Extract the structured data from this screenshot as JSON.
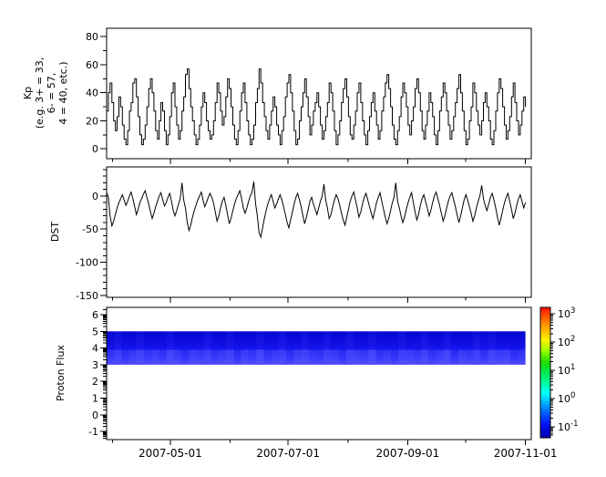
{
  "figure": {
    "background": "#ffffff",
    "axis_color": "#000000"
  },
  "x_axis": {
    "span_days": 220,
    "data_end_day": 217,
    "months": [
      {
        "day": 3,
        "label": ""
      },
      {
        "day": 33,
        "label": "2007-05-01"
      },
      {
        "day": 64,
        "label": ""
      },
      {
        "day": 94,
        "label": "2007-07-01"
      },
      {
        "day": 125,
        "label": ""
      },
      {
        "day": 156,
        "label": "2007-09-01"
      },
      {
        "day": 186,
        "label": ""
      },
      {
        "day": 217,
        "label": "2007-11-01"
      }
    ]
  },
  "chart_data": [
    {
      "type": "line",
      "name": "kp",
      "ylabel_lines": [
        "Kp",
        "(e.g. 3+ = 33,",
        "6- = 57,",
        "4 = 40, etc.)"
      ],
      "yticks": [
        80,
        60,
        40,
        20,
        0
      ],
      "minor_step": 10,
      "ylim": [
        -7,
        86
      ],
      "line_color": "#000000",
      "values": [
        27,
        40,
        47,
        33,
        20,
        13,
        23,
        37,
        30,
        17,
        7,
        3,
        13,
        27,
        33,
        47,
        50,
        37,
        23,
        10,
        3,
        7,
        17,
        30,
        43,
        50,
        40,
        27,
        13,
        7,
        20,
        33,
        27,
        13,
        3,
        10,
        23,
        40,
        47,
        30,
        17,
        7,
        13,
        27,
        37,
        53,
        57,
        43,
        30,
        20,
        10,
        3,
        7,
        17,
        30,
        40,
        33,
        20,
        13,
        7,
        10,
        20,
        33,
        47,
        40,
        27,
        17,
        23,
        37,
        50,
        43,
        30,
        17,
        7,
        3,
        13,
        27,
        40,
        47,
        33,
        20,
        10,
        3,
        7,
        17,
        33,
        43,
        57,
        47,
        33,
        23,
        13,
        7,
        17,
        27,
        37,
        30,
        17,
        10,
        3,
        13,
        23,
        37,
        47,
        53,
        40,
        27,
        13,
        3,
        7,
        20,
        30,
        40,
        50,
        37,
        23,
        10,
        17,
        27,
        33,
        40,
        30,
        17,
        7,
        13,
        23,
        33,
        47,
        40,
        27,
        13,
        3,
        10,
        20,
        33,
        43,
        50,
        37,
        23,
        10,
        7,
        17,
        27,
        40,
        47,
        33,
        20,
        10,
        3,
        13,
        23,
        33,
        40,
        27,
        17,
        7,
        13,
        27,
        37,
        47,
        53,
        43,
        30,
        17,
        7,
        3,
        13,
        23,
        37,
        47,
        40,
        30,
        17,
        10,
        20,
        30,
        43,
        50,
        40,
        27,
        13,
        7,
        17,
        27,
        40,
        33,
        23,
        10,
        3,
        13,
        27,
        37,
        47,
        40,
        27,
        17,
        7,
        13,
        23,
        33,
        43,
        53,
        40,
        27,
        13,
        3,
        7,
        20,
        30,
        47,
        40,
        27,
        17,
        10,
        20,
        33,
        40,
        30,
        20,
        7,
        3,
        13,
        27,
        40,
        50,
        43,
        30,
        17,
        7,
        13,
        23,
        37,
        47,
        33,
        20,
        10,
        17,
        27,
        37,
        30
      ]
    },
    {
      "type": "line",
      "name": "dst",
      "ylabel": "DST",
      "yticks": [
        0,
        -50,
        -100,
        -150
      ],
      "minor_step": 10,
      "ylim": [
        -153,
        44
      ],
      "line_color": "#000000",
      "values": [
        5,
        -2,
        -30,
        -45,
        -38,
        -28,
        -18,
        -10,
        -4,
        2,
        -6,
        -14,
        -8,
        0,
        6,
        -4,
        -16,
        -28,
        -20,
        -10,
        -4,
        3,
        8,
        -2,
        -12,
        -24,
        -34,
        -26,
        -16,
        -8,
        0,
        5,
        -5,
        -15,
        -10,
        -2,
        4,
        -8,
        -22,
        -30,
        -22,
        -12,
        -4,
        20,
        -6,
        -18,
        -40,
        -52,
        -44,
        -32,
        -22,
        -14,
        -6,
        0,
        6,
        -6,
        -16,
        -10,
        -2,
        4,
        -2,
        -10,
        -24,
        -38,
        -30,
        -18,
        -8,
        -2,
        -14,
        -28,
        -42,
        -34,
        -22,
        -12,
        -4,
        2,
        8,
        -4,
        -18,
        -26,
        -18,
        -8,
        0,
        6,
        22,
        -12,
        -30,
        -55,
        -62,
        -48,
        -34,
        -22,
        -12,
        -4,
        2,
        -8,
        -18,
        -12,
        -4,
        2,
        -6,
        -16,
        -28,
        -40,
        -48,
        -36,
        -24,
        -12,
        -2,
        4,
        -6,
        -16,
        -30,
        -42,
        -32,
        -20,
        -8,
        -2,
        -12,
        -20,
        -28,
        -18,
        -8,
        0,
        18,
        -6,
        -18,
        -34,
        -28,
        -16,
        -6,
        2,
        -4,
        -14,
        -26,
        -36,
        -44,
        -32,
        -20,
        -8,
        0,
        6,
        -6,
        -18,
        -32,
        -24,
        -12,
        -2,
        4,
        -6,
        -16,
        -26,
        -34,
        -22,
        -10,
        -2,
        5,
        -8,
        -20,
        -32,
        -42,
        -34,
        -22,
        -10,
        -2,
        20,
        -8,
        -18,
        -30,
        -40,
        -32,
        -20,
        -10,
        -2,
        5,
        -10,
        -24,
        -36,
        -28,
        -14,
        -4,
        2,
        -8,
        -18,
        -30,
        -22,
        -10,
        0,
        6,
        -4,
        -14,
        -26,
        -38,
        -30,
        -18,
        -8,
        0,
        5,
        -6,
        -16,
        -28,
        -40,
        -30,
        -18,
        -6,
        2,
        -6,
        -16,
        -26,
        -38,
        -30,
        -18,
        -8,
        0,
        16,
        -4,
        -14,
        -22,
        -12,
        -2,
        4,
        -6,
        -18,
        -32,
        -44,
        -34,
        -22,
        -10,
        -2,
        4,
        -8,
        -20,
        -34,
        -26,
        -14,
        -4,
        2,
        -8,
        -18,
        -10
      ]
    },
    {
      "type": "heatmap",
      "name": "proton_flux",
      "ylabel": "Proton Flux",
      "yticks": [
        6,
        5,
        4,
        3,
        2,
        1,
        0,
        -1
      ],
      "ylim": [
        -1.49,
        6.44
      ],
      "band": {
        "y_top": 5,
        "y_bottom": 3,
        "gradient": [
          [
            0,
            "#0606cf"
          ],
          [
            0.55,
            "#1414ee"
          ],
          [
            0.8,
            "#2626fa"
          ],
          [
            1,
            "#4646ff"
          ]
        ],
        "streak_color": "#6a6aff",
        "streaks": [
          0.3,
          0.7,
          0.2,
          0.5,
          0.8,
          0.4,
          0.6,
          0.3,
          0.9,
          0.5,
          0.2,
          0.6,
          0.4,
          0.7,
          0.3,
          0.5,
          0.8,
          0.2,
          0.6,
          0.4,
          0.9,
          0.3,
          0.5,
          0.7,
          0.2,
          0.6,
          0.8,
          0.4,
          0.3,
          0.7,
          0.5,
          0.2,
          0.8,
          0.6,
          0.4,
          0.9,
          0.3,
          0.5,
          0.2,
          0.7,
          0.6,
          0.4,
          0.8,
          0.3,
          0.5,
          0.9,
          0.2,
          0.6,
          0.4,
          0.7,
          0.3,
          0.8,
          0.5,
          0.6,
          0.2,
          0.4
        ]
      },
      "colorbar": {
        "tick_exponents": [
          3,
          2,
          1,
          0,
          -1
        ],
        "tick_label_base": "10",
        "elim": [
          -1.39,
          3.23
        ],
        "gradient": [
          [
            0,
            "#ff1000"
          ],
          [
            0.08,
            "#ff6000"
          ],
          [
            0.17,
            "#ffb300"
          ],
          [
            0.25,
            "#fff300"
          ],
          [
            0.33,
            "#9dff00"
          ],
          [
            0.42,
            "#1fdd00"
          ],
          [
            0.5,
            "#00e650"
          ],
          [
            0.58,
            "#00ff9d"
          ],
          [
            0.66,
            "#00ffff"
          ],
          [
            0.74,
            "#00aaff"
          ],
          [
            0.82,
            "#0055ff"
          ],
          [
            0.9,
            "#0011f5"
          ],
          [
            1,
            "#0000ad"
          ]
        ]
      }
    }
  ]
}
